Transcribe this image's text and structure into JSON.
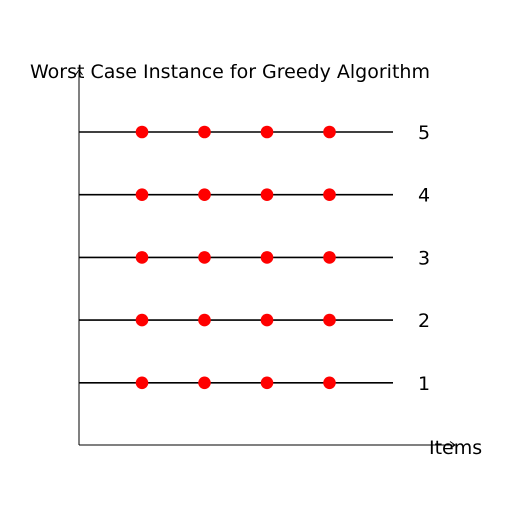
{
  "title": "Worst Case Instance for Greedy Algorithm",
  "x_axis_label": "Items",
  "colors": {
    "dot": "#ff0000",
    "line": "#000000"
  },
  "levels": [
    {
      "label": "5",
      "item_count": 4
    },
    {
      "label": "4",
      "item_count": 4
    },
    {
      "label": "3",
      "item_count": 4
    },
    {
      "label": "2",
      "item_count": 4
    },
    {
      "label": "1",
      "item_count": 4
    }
  ]
}
